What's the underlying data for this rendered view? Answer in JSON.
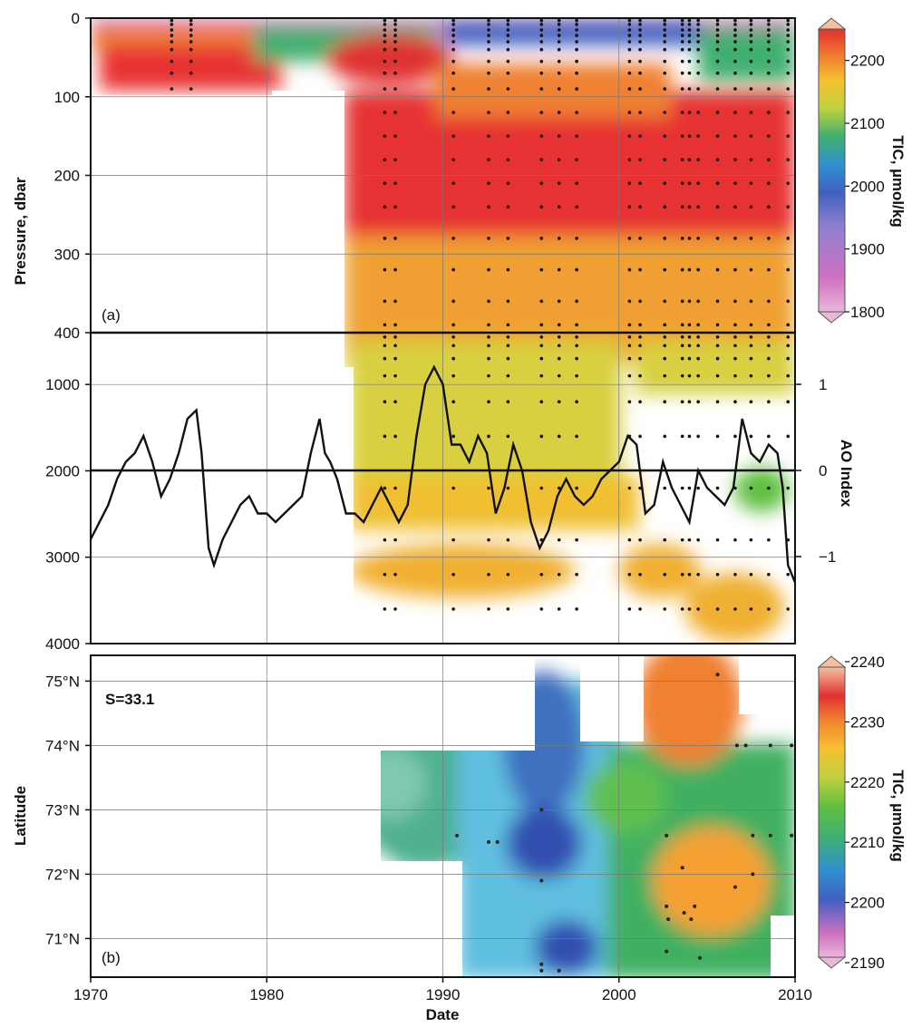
{
  "chart_data": [
    {
      "panel": "(a)",
      "type": "heatmap",
      "xlabel": "Date",
      "ylabel": "Pressure, dbar",
      "xlim": [
        1970,
        2010
      ],
      "x_ticks": [
        "1970",
        "1980",
        "1990",
        "2000",
        "2010"
      ],
      "y_upper": {
        "lim": [
          0,
          400
        ],
        "ticks": [
          "0",
          "100",
          "200",
          "300",
          "400"
        ]
      },
      "y_lower": {
        "lim": [
          400,
          4000
        ],
        "ticks": [
          "1000",
          "2000",
          "3000",
          "4000"
        ]
      },
      "colorbar": {
        "label": "TIC, µmol/kg",
        "min": 1800,
        "max": 2250,
        "ticks": [
          "1800",
          "1900",
          "2000",
          "2100",
          "2200"
        ],
        "colors": [
          "#e8b8d8",
          "#d070c0",
          "#9080d0",
          "#4060c0",
          "#3090d0",
          "#40b070",
          "#60c040",
          "#c0d040",
          "#f5c030",
          "#f08030",
          "#e03030"
        ]
      },
      "regions": [
        {
          "x": [
            1970,
            2010
          ],
          "p": [
            0,
            12
          ],
          "tic": 1880
        },
        {
          "x": [
            1990,
            2000
          ],
          "p": [
            0,
            30
          ],
          "tic": 2000
        },
        {
          "x": [
            1970,
            1978
          ],
          "p": [
            12,
            100
          ],
          "tic": 2200
        },
        {
          "x": [
            1984,
            2010
          ],
          "p": [
            100,
            250
          ],
          "tic": 2210
        },
        {
          "x": [
            1984,
            2010
          ],
          "p": [
            250,
            400
          ],
          "tic": 2180
        },
        {
          "x": [
            1984,
            2010
          ],
          "p": [
            400,
            3900
          ],
          "tic": 2160
        }
      ],
      "station_times": [
        1974.6,
        1975.7,
        1986.7,
        1987.3,
        1990.6,
        1992.6,
        1993.7,
        1995.6,
        1996.6,
        1997.6,
        2000.6,
        2001.2,
        2002.6,
        2003.6,
        2004.0,
        2004.5,
        2005.6,
        2006.6,
        2007.5,
        2008.5,
        2009.6
      ],
      "ao_index": {
        "label": "AO Index",
        "ticks": [
          "−1",
          "0",
          "1"
        ],
        "range": [
          -1.5,
          1.5
        ],
        "series": [
          {
            "name": "AO Index",
            "x": [
              1970.0,
              1970.5,
              1971.0,
              1971.5,
              1972.0,
              1972.5,
              1973.0,
              1973.5,
              1974.0,
              1974.5,
              1975.0,
              1975.5,
              1976.0,
              1976.3,
              1976.7,
              1977.0,
              1977.5,
              1978.0,
              1978.5,
              1979.0,
              1979.5,
              1980.0,
              1980.5,
              1981.0,
              1981.5,
              1982.0,
              1982.5,
              1983.0,
              1983.3,
              1983.6,
              1984.0,
              1984.5,
              1985.0,
              1985.5,
              1986.0,
              1986.5,
              1987.0,
              1987.5,
              1988.0,
              1988.5,
              1989.0,
              1989.5,
              1990.0,
              1990.5,
              1991.0,
              1991.5,
              1992.0,
              1992.5,
              1993.0,
              1993.5,
              1994.0,
              1994.5,
              1995.0,
              1995.5,
              1996.0,
              1996.5,
              1997.0,
              1997.5,
              1998.0,
              1998.5,
              1999.0,
              1999.5,
              2000.0,
              2000.5,
              2001.0,
              2001.5,
              2002.0,
              2002.5,
              2003.0,
              2003.5,
              2004.0,
              2004.5,
              2005.0,
              2005.5,
              2006.0,
              2006.5,
              2007.0,
              2007.5,
              2008.0,
              2008.5,
              2009.0,
              2009.3,
              2009.6,
              2010.0
            ],
            "y": [
              -0.8,
              -0.6,
              -0.4,
              -0.1,
              0.1,
              0.2,
              0.4,
              0.1,
              -0.3,
              -0.1,
              0.2,
              0.6,
              0.7,
              0.2,
              -0.9,
              -1.1,
              -0.8,
              -0.6,
              -0.4,
              -0.3,
              -0.5,
              -0.5,
              -0.6,
              -0.5,
              -0.4,
              -0.3,
              0.2,
              0.6,
              0.2,
              0.1,
              -0.1,
              -0.5,
              -0.5,
              -0.6,
              -0.4,
              -0.2,
              -0.4,
              -0.6,
              -0.4,
              0.4,
              1.0,
              1.2,
              1.0,
              0.3,
              0.3,
              0.1,
              0.4,
              0.2,
              -0.5,
              -0.2,
              0.3,
              0.0,
              -0.6,
              -0.9,
              -0.7,
              -0.3,
              -0.1,
              -0.3,
              -0.4,
              -0.3,
              -0.1,
              0.0,
              0.1,
              0.4,
              0.3,
              -0.5,
              -0.4,
              0.1,
              -0.2,
              -0.4,
              -0.6,
              0.0,
              -0.2,
              -0.3,
              -0.4,
              -0.2,
              0.6,
              0.2,
              0.1,
              0.3,
              0.2,
              -0.2,
              -1.1,
              -1.3
            ]
          }
        ]
      }
    },
    {
      "panel": "(b)",
      "type": "heatmap",
      "annotation": "S=33.1",
      "xlabel": "Date",
      "ylabel": "Latitude",
      "xlim": [
        1970,
        2010
      ],
      "ylim": [
        70.4,
        75.4
      ],
      "x_ticks": [
        "1970",
        "1980",
        "1990",
        "2000",
        "2010"
      ],
      "y_ticks": [
        "71°N",
        "72°N",
        "73°N",
        "74°N",
        "75°N"
      ],
      "y_tick_values": [
        71,
        72,
        73,
        74,
        75
      ],
      "colorbar": {
        "label": "TIC, µmol/kg",
        "min": 2190,
        "max": 2240,
        "ticks": [
          "2190",
          "2200",
          "2210",
          "2220",
          "2230",
          "2240"
        ],
        "colors": [
          "#e8b8d8",
          "#d070c0",
          "#9080d0",
          "#4060c0",
          "#3090d0",
          "#40b070",
          "#60c040",
          "#c0d040",
          "#f5c030",
          "#f08030",
          "#e03030",
          "#f5c0a0"
        ]
      },
      "regions": [
        {
          "x": [
            1986,
            1991
          ],
          "lat": [
            71.8,
            74.0
          ],
          "tic": 2210
        },
        {
          "x": [
            1991,
            1999
          ],
          "lat": [
            70.4,
            75.2
          ],
          "tic": 2203
        },
        {
          "x": [
            1999,
            2002
          ],
          "lat": [
            70.4,
            74.0
          ],
          "tic": 2212
        },
        {
          "x": [
            2001,
            2007
          ],
          "lat": [
            74.0,
            75.4
          ],
          "tic": 2226
        },
        {
          "x": [
            2002,
            2007
          ],
          "lat": [
            70.8,
            72.6
          ],
          "tic": 2222
        },
        {
          "x": [
            2006,
            2010
          ],
          "lat": [
            71.2,
            75.4
          ],
          "tic": 2214
        }
      ],
      "stations": [
        {
          "x": 1990.8,
          "lat": 72.6
        },
        {
          "x": 1992.6,
          "lat": 72.5
        },
        {
          "x": 1993.1,
          "lat": 72.5
        },
        {
          "x": 1995.6,
          "lat": 73.0
        },
        {
          "x": 1995.6,
          "lat": 71.9
        },
        {
          "x": 1995.6,
          "lat": 70.6
        },
        {
          "x": 1995.6,
          "lat": 70.5
        },
        {
          "x": 1996.6,
          "lat": 70.5
        },
        {
          "x": 2002.7,
          "lat": 72.6
        },
        {
          "x": 2002.7,
          "lat": 71.5
        },
        {
          "x": 2002.8,
          "lat": 71.3
        },
        {
          "x": 2002.7,
          "lat": 70.8
        },
        {
          "x": 2003.6,
          "lat": 72.1
        },
        {
          "x": 2003.7,
          "lat": 71.4
        },
        {
          "x": 2004.1,
          "lat": 71.3
        },
        {
          "x": 2004.3,
          "lat": 71.5
        },
        {
          "x": 2004.6,
          "lat": 70.7
        },
        {
          "x": 2005.6,
          "lat": 75.1
        },
        {
          "x": 2006.6,
          "lat": 71.8
        },
        {
          "x": 2006.7,
          "lat": 74.0
        },
        {
          "x": 2007.2,
          "lat": 74.0
        },
        {
          "x": 2007.6,
          "lat": 72.6
        },
        {
          "x": 2007.6,
          "lat": 72.0
        },
        {
          "x": 2008.6,
          "lat": 72.6
        },
        {
          "x": 2008.6,
          "lat": 74.0
        },
        {
          "x": 2009.8,
          "lat": 74.0
        },
        {
          "x": 2009.8,
          "lat": 72.6
        }
      ]
    }
  ]
}
